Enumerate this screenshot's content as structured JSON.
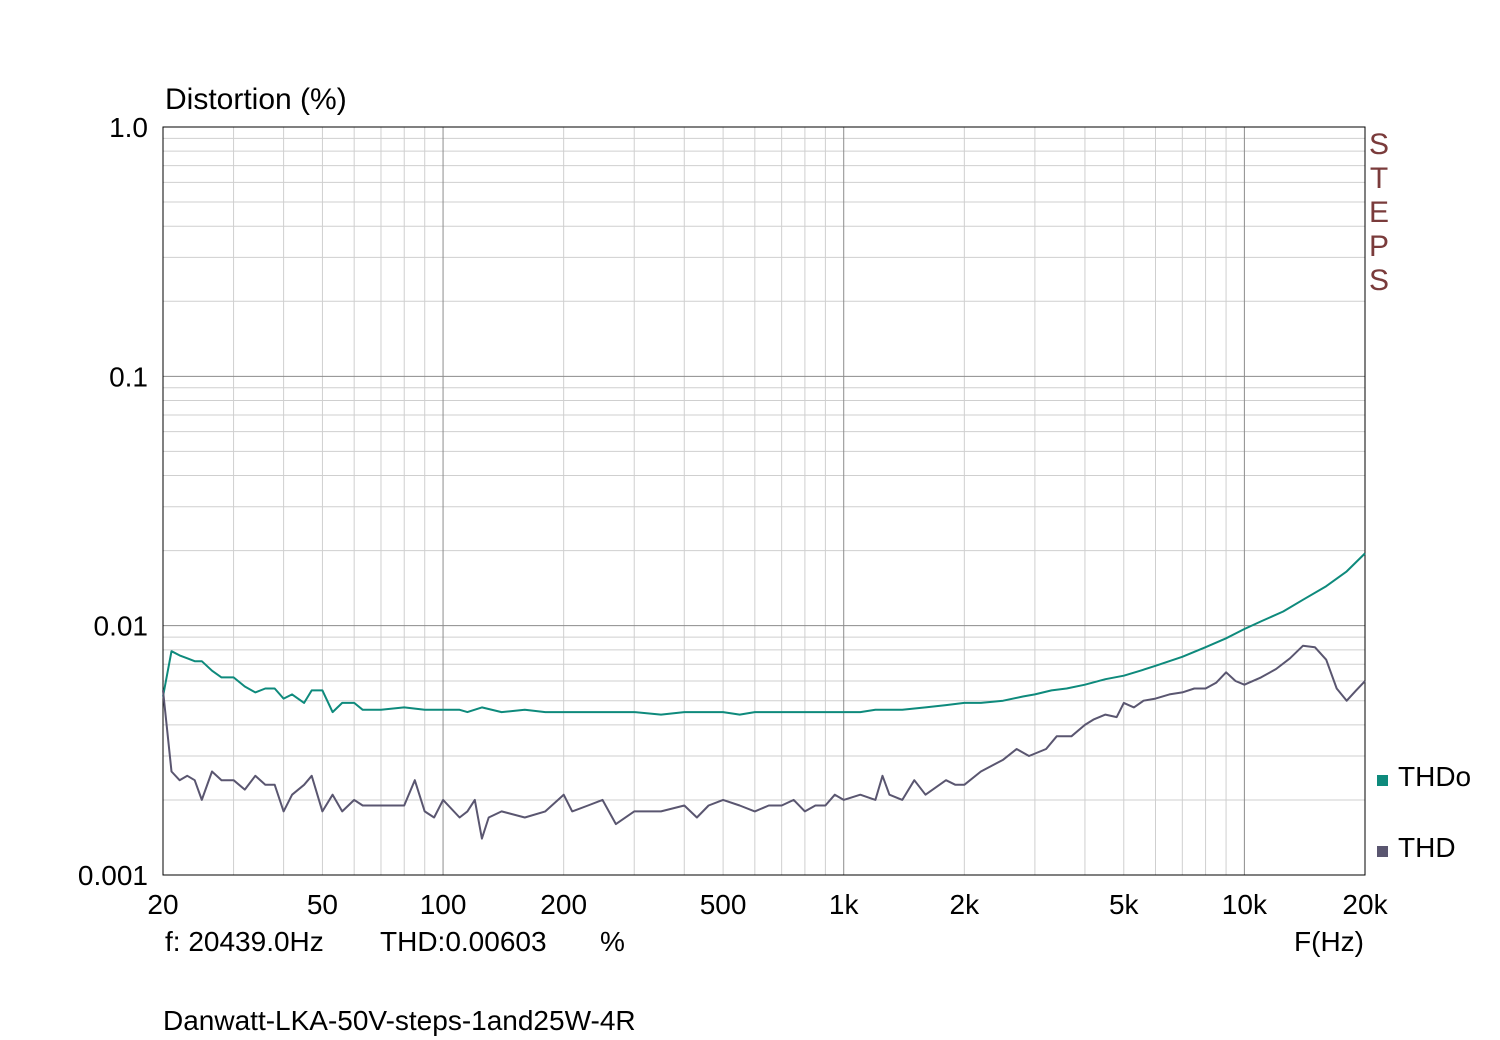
{
  "chart_data": {
    "type": "line",
    "ylabel": "Distortion (%)",
    "xlabel": "F(Hz)",
    "x_scale": "log",
    "y_scale": "log",
    "xlim": [
      20,
      20000
    ],
    "ylim": [
      0.001,
      1.0
    ],
    "grid": true,
    "x_ticks": [
      {
        "value": 20,
        "label": "20"
      },
      {
        "value": 50,
        "label": "50"
      },
      {
        "value": 100,
        "label": "100"
      },
      {
        "value": 200,
        "label": "200"
      },
      {
        "value": 500,
        "label": "500"
      },
      {
        "value": 1000,
        "label": "1k"
      },
      {
        "value": 2000,
        "label": "2k"
      },
      {
        "value": 5000,
        "label": "5k"
      },
      {
        "value": 10000,
        "label": "10k"
      },
      {
        "value": 20000,
        "label": "20k"
      }
    ],
    "y_ticks": [
      {
        "value": 1.0,
        "label": "1.0"
      },
      {
        "value": 0.1,
        "label": "0.1"
      },
      {
        "value": 0.01,
        "label": "0.01"
      },
      {
        "value": 0.001,
        "label": "0.001"
      }
    ],
    "watermark": "STEPS",
    "legend_position": "right",
    "cursor_readout": {
      "frequency": "f: 20439.0Hz",
      "value": "THD:0.00603",
      "unit": "%"
    },
    "caption": "Danwatt-LKA-50V-steps-1and25W-4R",
    "series": [
      {
        "name": "THDo",
        "color": "#0e8a7c",
        "points": [
          [
            20,
            0.0052
          ],
          [
            21,
            0.0079
          ],
          [
            22,
            0.0076
          ],
          [
            23,
            0.0074
          ],
          [
            24,
            0.0072
          ],
          [
            25,
            0.0072
          ],
          [
            26.5,
            0.0066
          ],
          [
            28,
            0.0062
          ],
          [
            30,
            0.0062
          ],
          [
            32,
            0.0057
          ],
          [
            34,
            0.0054
          ],
          [
            36,
            0.0056
          ],
          [
            38,
            0.0056
          ],
          [
            40,
            0.0051
          ],
          [
            42,
            0.0053
          ],
          [
            45,
            0.0049
          ],
          [
            47,
            0.0055
          ],
          [
            50,
            0.0055
          ],
          [
            53,
            0.0045
          ],
          [
            56,
            0.0049
          ],
          [
            60,
            0.0049
          ],
          [
            63,
            0.0046
          ],
          [
            70,
            0.0046
          ],
          [
            80,
            0.0047
          ],
          [
            90,
            0.0046
          ],
          [
            100,
            0.0046
          ],
          [
            110,
            0.0046
          ],
          [
            115,
            0.0045
          ],
          [
            125,
            0.0047
          ],
          [
            140,
            0.0045
          ],
          [
            160,
            0.0046
          ],
          [
            180,
            0.0045
          ],
          [
            200,
            0.0045
          ],
          [
            250,
            0.0045
          ],
          [
            300,
            0.0045
          ],
          [
            350,
            0.0044
          ],
          [
            400,
            0.0045
          ],
          [
            500,
            0.0045
          ],
          [
            550,
            0.0044
          ],
          [
            600,
            0.0045
          ],
          [
            700,
            0.0045
          ],
          [
            800,
            0.0045
          ],
          [
            900,
            0.0045
          ],
          [
            1000,
            0.0045
          ],
          [
            1100,
            0.0045
          ],
          [
            1200,
            0.0046
          ],
          [
            1400,
            0.0046
          ],
          [
            1600,
            0.0047
          ],
          [
            1800,
            0.0048
          ],
          [
            2000,
            0.0049
          ],
          [
            2200,
            0.0049
          ],
          [
            2500,
            0.005
          ],
          [
            2800,
            0.0052
          ],
          [
            3000,
            0.0053
          ],
          [
            3300,
            0.0055
          ],
          [
            3600,
            0.0056
          ],
          [
            4000,
            0.0058
          ],
          [
            4500,
            0.0061
          ],
          [
            5000,
            0.0063
          ],
          [
            5500,
            0.0066
          ],
          [
            6000,
            0.0069
          ],
          [
            7000,
            0.0075
          ],
          [
            8000,
            0.0082
          ],
          [
            9000,
            0.0089
          ],
          [
            10000,
            0.0097
          ],
          [
            11000,
            0.0104
          ],
          [
            12500,
            0.0114
          ],
          [
            14000,
            0.0127
          ],
          [
            16000,
            0.0144
          ],
          [
            18000,
            0.0165
          ],
          [
            20000,
            0.0195
          ]
        ]
      },
      {
        "name": "THD",
        "color": "#5a5670",
        "points": [
          [
            20,
            0.0055
          ],
          [
            21,
            0.0026
          ],
          [
            22,
            0.0024
          ],
          [
            23,
            0.0025
          ],
          [
            24,
            0.0024
          ],
          [
            25,
            0.002
          ],
          [
            26.5,
            0.0026
          ],
          [
            28,
            0.0024
          ],
          [
            30,
            0.0024
          ],
          [
            32,
            0.0022
          ],
          [
            34,
            0.0025
          ],
          [
            36,
            0.0023
          ],
          [
            38,
            0.0023
          ],
          [
            40,
            0.0018
          ],
          [
            42,
            0.0021
          ],
          [
            45,
            0.0023
          ],
          [
            47,
            0.0025
          ],
          [
            50,
            0.0018
          ],
          [
            53,
            0.0021
          ],
          [
            56,
            0.0018
          ],
          [
            60,
            0.002
          ],
          [
            63,
            0.0019
          ],
          [
            70,
            0.0019
          ],
          [
            80,
            0.0019
          ],
          [
            85,
            0.0024
          ],
          [
            90,
            0.0018
          ],
          [
            95,
            0.0017
          ],
          [
            100,
            0.002
          ],
          [
            110,
            0.0017
          ],
          [
            115,
            0.0018
          ],
          [
            120,
            0.002
          ],
          [
            125,
            0.0014
          ],
          [
            130,
            0.0017
          ],
          [
            140,
            0.0018
          ],
          [
            160,
            0.0017
          ],
          [
            180,
            0.0018
          ],
          [
            200,
            0.0021
          ],
          [
            210,
            0.0018
          ],
          [
            230,
            0.0019
          ],
          [
            250,
            0.002
          ],
          [
            270,
            0.0016
          ],
          [
            300,
            0.0018
          ],
          [
            350,
            0.0018
          ],
          [
            400,
            0.0019
          ],
          [
            430,
            0.0017
          ],
          [
            460,
            0.0019
          ],
          [
            500,
            0.002
          ],
          [
            550,
            0.0019
          ],
          [
            600,
            0.0018
          ],
          [
            650,
            0.0019
          ],
          [
            700,
            0.0019
          ],
          [
            750,
            0.002
          ],
          [
            800,
            0.0018
          ],
          [
            850,
            0.0019
          ],
          [
            900,
            0.0019
          ],
          [
            950,
            0.0021
          ],
          [
            1000,
            0.002
          ],
          [
            1100,
            0.0021
          ],
          [
            1200,
            0.002
          ],
          [
            1250,
            0.0025
          ],
          [
            1300,
            0.0021
          ],
          [
            1400,
            0.002
          ],
          [
            1500,
            0.0024
          ],
          [
            1600,
            0.0021
          ],
          [
            1800,
            0.0024
          ],
          [
            1900,
            0.0023
          ],
          [
            2000,
            0.0023
          ],
          [
            2200,
            0.0026
          ],
          [
            2500,
            0.0029
          ],
          [
            2700,
            0.0032
          ],
          [
            2900,
            0.003
          ],
          [
            3200,
            0.0032
          ],
          [
            3400,
            0.0036
          ],
          [
            3700,
            0.0036
          ],
          [
            4000,
            0.004
          ],
          [
            4200,
            0.0042
          ],
          [
            4500,
            0.0044
          ],
          [
            4800,
            0.0043
          ],
          [
            5000,
            0.0049
          ],
          [
            5300,
            0.0047
          ],
          [
            5600,
            0.005
          ],
          [
            6000,
            0.0051
          ],
          [
            6500,
            0.0053
          ],
          [
            7000,
            0.0054
          ],
          [
            7500,
            0.0056
          ],
          [
            8000,
            0.0056
          ],
          [
            8500,
            0.0059
          ],
          [
            9000,
            0.0065
          ],
          [
            9500,
            0.006
          ],
          [
            10000,
            0.0058
          ],
          [
            11000,
            0.0062
          ],
          [
            12000,
            0.0067
          ],
          [
            13000,
            0.0074
          ],
          [
            14000,
            0.0083
          ],
          [
            15000,
            0.0082
          ],
          [
            16000,
            0.0073
          ],
          [
            17000,
            0.0056
          ],
          [
            18000,
            0.005
          ],
          [
            19000,
            0.0055
          ],
          [
            20000,
            0.006
          ]
        ]
      }
    ]
  }
}
